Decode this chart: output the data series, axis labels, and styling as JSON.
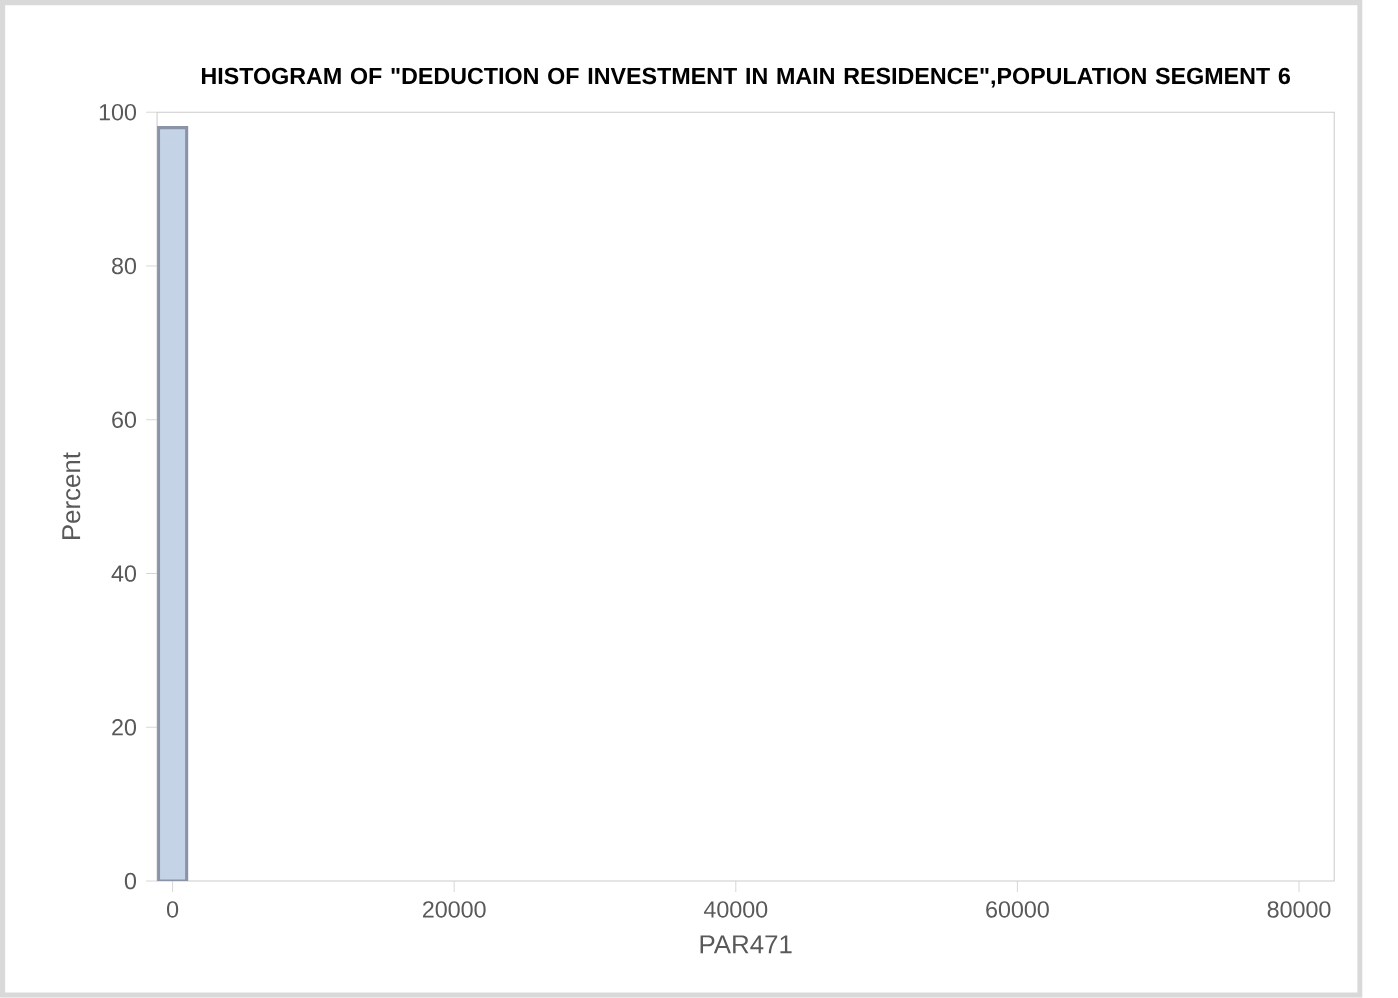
{
  "chart_data": {
    "type": "histogram",
    "title": "HISTOGRAM OF  \"DEDUCTION OF INVESTMENT IN MAIN RESIDENCE\",POPULATION SEGMENT 6",
    "xlabel": "PAR471",
    "ylabel": "Percent",
    "bins": [
      -1000,
      1000
    ],
    "values": [
      98
    ],
    "color": "#c5d3e6",
    "xlim": [
      -1100,
      82500
    ],
    "xticks": [
      0,
      20000,
      40000,
      60000,
      80000
    ],
    "ylim": [
      0,
      100
    ],
    "yticks": [
      0,
      20,
      40,
      60,
      80,
      100
    ],
    "grid": false
  }
}
